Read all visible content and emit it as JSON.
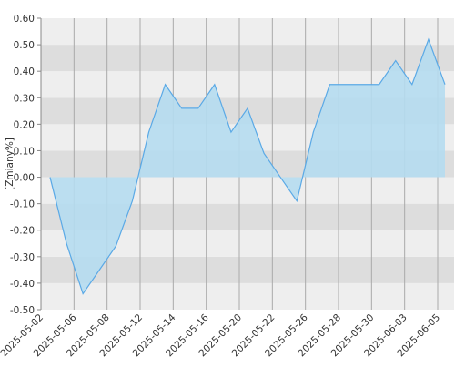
{
  "chart_data": {
    "type": "area",
    "y_label": "[Zmiany%]",
    "xticks": [
      "2025-05-02",
      "2025-05-06",
      "2025-05-08",
      "2025-05-12",
      "2025-05-14",
      "2025-05-16",
      "2025-05-20",
      "2025-05-22",
      "2025-05-26",
      "2025-05-28",
      "2025-05-30",
      "2025-06-03",
      "2025-06-05"
    ],
    "values": [
      0,
      -0.25,
      -0.44,
      -0.35,
      -0.26,
      -0.09,
      0.17,
      0.35,
      0.26,
      0.26,
      0.35,
      0.17,
      0.26,
      0.09,
      0,
      -0.09,
      0.17,
      0.35,
      0.35,
      0.35,
      0.35,
      0.44,
      0.35,
      0.52,
      0.35
    ],
    "color": "#5aa9e6",
    "fill": "#b5dcf0",
    "ylim": [
      -0.5,
      0.6
    ],
    "yticks": [
      {
        "value": -0.5,
        "label": "-0.50"
      },
      {
        "value": -0.4,
        "label": "-0.40"
      },
      {
        "value": -0.3,
        "label": "-0.30"
      },
      {
        "value": -0.2,
        "label": "-0.20"
      },
      {
        "value": -0.1,
        "label": "-0.10"
      },
      {
        "value": 0,
        "label": "0.00"
      },
      {
        "value": 0.1,
        "label": "0.10"
      },
      {
        "value": 0.2,
        "label": "0.20"
      },
      {
        "value": 0.3,
        "label": "0.30"
      },
      {
        "value": 0.4,
        "label": "0.40"
      },
      {
        "value": 0.5,
        "label": "0.50"
      },
      {
        "value": 0.6,
        "label": "0.60"
      }
    ],
    "grid": true
  }
}
